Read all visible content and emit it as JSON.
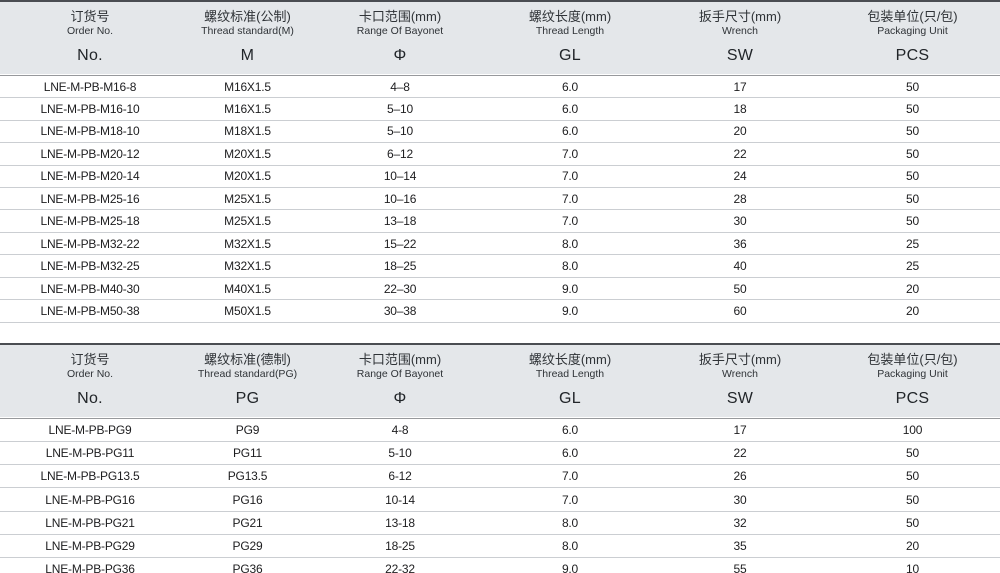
{
  "colors": {
    "header_bg": "#e4e7ea",
    "table_top_border": "#4a4d52",
    "header_bottom_border": "#97999c",
    "row_border": "#cbced2",
    "text": "#1d1d1f"
  },
  "tables": [
    {
      "name": "metric-thread-table",
      "columns": [
        {
          "zh": "订货号",
          "en": "Order No.",
          "code": "No."
        },
        {
          "zh": "螺纹标准(公制)",
          "en": "Thread standard(M)",
          "code": "M"
        },
        {
          "zh": "卡口范围(mm)",
          "en": "Range Of Bayonet",
          "code": "Φ"
        },
        {
          "zh": "螺纹长度(mm)",
          "en": "Thread Length",
          "code": "GL"
        },
        {
          "zh": "扳手尺寸(mm)",
          "en": "Wrench",
          "code": "SW"
        },
        {
          "zh": "包装单位(只/包)",
          "en": "Packaging Unit",
          "code": "PCS"
        }
      ],
      "rows": [
        [
          "LNE-M-PB-M16-8",
          "M16X1.5",
          "4–8",
          "6.0",
          "17",
          "50"
        ],
        [
          "LNE-M-PB-M16-10",
          "M16X1.5",
          "5–10",
          "6.0",
          "18",
          "50"
        ],
        [
          "LNE-M-PB-M18-10",
          "M18X1.5",
          "5–10",
          "6.0",
          "20",
          "50"
        ],
        [
          "LNE-M-PB-M20-12",
          "M20X1.5",
          "6–12",
          "7.0",
          "22",
          "50"
        ],
        [
          "LNE-M-PB-M20-14",
          "M20X1.5",
          "10–14",
          "7.0",
          "24",
          "50"
        ],
        [
          "LNE-M-PB-M25-16",
          "M25X1.5",
          "10–16",
          "7.0",
          "28",
          "50"
        ],
        [
          "LNE-M-PB-M25-18",
          "M25X1.5",
          "13–18",
          "7.0",
          "30",
          "50"
        ],
        [
          "LNE-M-PB-M32-22",
          "M32X1.5",
          "15–22",
          "8.0",
          "36",
          "25"
        ],
        [
          "LNE-M-PB-M32-25",
          "M32X1.5",
          "18–25",
          "8.0",
          "40",
          "25"
        ],
        [
          "LNE-M-PB-M40-30",
          "M40X1.5",
          "22–30",
          "9.0",
          "50",
          "20"
        ],
        [
          "LNE-M-PB-M50-38",
          "M50X1.5",
          "30–38",
          "9.0",
          "60",
          "20"
        ]
      ]
    },
    {
      "name": "pg-thread-table",
      "columns": [
        {
          "zh": "订货号",
          "en": "Order No.",
          "code": "No."
        },
        {
          "zh": "螺纹标准(德制)",
          "en": "Thread standard(PG)",
          "code": "PG"
        },
        {
          "zh": "卡口范围(mm)",
          "en": "Range Of Bayonet",
          "code": "Φ"
        },
        {
          "zh": "螺纹长度(mm)",
          "en": "Thread Length",
          "code": "GL"
        },
        {
          "zh": "扳手尺寸(mm)",
          "en": "Wrench",
          "code": "SW"
        },
        {
          "zh": "包装单位(只/包)",
          "en": "Packaging Unit",
          "code": "PCS"
        }
      ],
      "rows": [
        [
          "LNE-M-PB-PG9",
          "PG9",
          "4-8",
          "6.0",
          "17",
          "100"
        ],
        [
          "LNE-M-PB-PG11",
          "PG11",
          "5-10",
          "6.0",
          "22",
          "50"
        ],
        [
          "LNE-M-PB-PG13.5",
          "PG13.5",
          "6-12",
          "7.0",
          "26",
          "50"
        ],
        [
          "LNE-M-PB-PG16",
          "PG16",
          "10-14",
          "7.0",
          "30",
          "50"
        ],
        [
          "LNE-M-PB-PG21",
          "PG21",
          "13-18",
          "8.0",
          "32",
          "50"
        ],
        [
          "LNE-M-PB-PG29",
          "PG29",
          "18-25",
          "8.0",
          "35",
          "20"
        ],
        [
          "LNE-M-PB-PG36",
          "PG36",
          "22-32",
          "9.0",
          "55",
          "10"
        ]
      ]
    }
  ]
}
